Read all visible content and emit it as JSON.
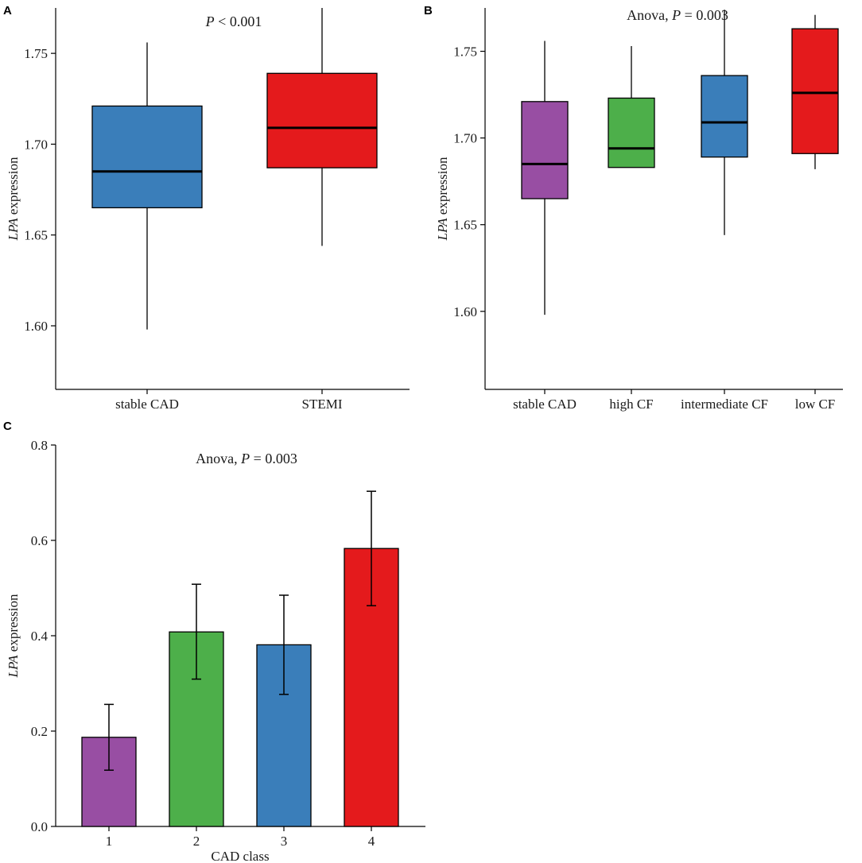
{
  "chart_data": [
    {
      "panel": "A",
      "type": "box",
      "annotation_prefix": "P",
      "annotation_suffix": " < 0.001",
      "ylabel_italic": "LPA",
      "ylabel_rest": " expression",
      "ylim": [
        1.565,
        1.775
      ],
      "yticks": [
        "1.60",
        "1.65",
        "1.70",
        "1.75"
      ],
      "categories": [
        "stable CAD",
        "STEMI"
      ],
      "boxes": [
        {
          "name": "stable CAD",
          "min": 1.598,
          "q1": 1.665,
          "median": 1.685,
          "q3": 1.721,
          "max": 1.756,
          "color": "#3A7EBA"
        },
        {
          "name": "STEMI",
          "min": 1.644,
          "q1": 1.687,
          "median": 1.709,
          "q3": 1.739,
          "max": 1.775,
          "color": "#E41A1C"
        }
      ]
    },
    {
      "panel": "B",
      "type": "box",
      "annotation_prefix": "Anova, ",
      "annotation_italic": "P",
      "annotation_suffix": " = 0.003",
      "ylabel_italic": "LPA",
      "ylabel_rest": " expression",
      "ylim": [
        1.555,
        1.775
      ],
      "yticks": [
        "1.60",
        "1.65",
        "1.70",
        "1.75"
      ],
      "categories": [
        "stable CAD",
        "high CF",
        "intermediate CF",
        "low CF"
      ],
      "boxes": [
        {
          "name": "stable CAD",
          "min": 1.598,
          "q1": 1.665,
          "median": 1.685,
          "q3": 1.721,
          "max": 1.756,
          "color": "#984EA3"
        },
        {
          "name": "high CF",
          "min": 1.683,
          "q1": 1.683,
          "median": 1.694,
          "q3": 1.723,
          "max": 1.753,
          "color": "#4DAF4A"
        },
        {
          "name": "intermediate CF",
          "min": 1.644,
          "q1": 1.689,
          "median": 1.709,
          "q3": 1.736,
          "max": 1.774,
          "color": "#3A7EBA"
        },
        {
          "name": "low CF",
          "min": 1.682,
          "q1": 1.691,
          "median": 1.726,
          "q3": 1.763,
          "max": 1.771,
          "color": "#E41A1C"
        }
      ]
    },
    {
      "panel": "C",
      "type": "bar",
      "annotation_prefix": "Anova, ",
      "annotation_italic": "P",
      "annotation_suffix": " = 0.003",
      "ylabel_italic": "LPA",
      "ylabel_rest": " expression",
      "xlabel": "CAD class",
      "ylim": [
        0,
        0.8
      ],
      "yticks": [
        "0.0",
        "0.2",
        "0.4",
        "0.6",
        "0.8"
      ],
      "categories": [
        "1",
        "2",
        "3",
        "4"
      ],
      "values": [
        0.187,
        0.408,
        0.381,
        0.583
      ],
      "err_low": [
        0.118,
        0.309,
        0.277,
        0.463
      ],
      "err_high": [
        0.256,
        0.508,
        0.485,
        0.703
      ],
      "colors": [
        "#984EA3",
        "#4DAF4A",
        "#3A7EBA",
        "#E41A1C"
      ]
    }
  ]
}
